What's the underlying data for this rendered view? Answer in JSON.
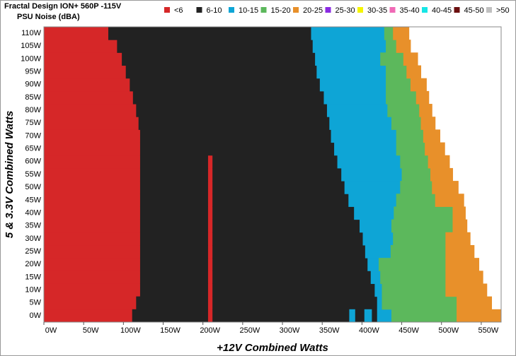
{
  "chart_data": {
    "type": "region-map",
    "title": "Fractal Design ION+ 560P -115V",
    "subtitle": "PSU Noise (dBA)",
    "x_label": "+12V Combined Watts",
    "y_label": "5 & 3.3V Combined Watts",
    "xlim": [
      0,
      575
    ],
    "xticks": [
      {
        "value": 0,
        "label": "0W"
      },
      {
        "value": 50,
        "label": "50W"
      },
      {
        "value": 100,
        "label": "100W"
      },
      {
        "value": 150,
        "label": "150W"
      },
      {
        "value": 200,
        "label": "200W"
      },
      {
        "value": 250,
        "label": "250W"
      },
      {
        "value": 300,
        "label": "300W"
      },
      {
        "value": 350,
        "label": "350W"
      },
      {
        "value": 400,
        "label": "400W"
      },
      {
        "value": 450,
        "label": "450W"
      },
      {
        "value": 500,
        "label": "500W"
      },
      {
        "value": 550,
        "label": "550W"
      }
    ],
    "categories": [
      "0W",
      "5W",
      "10W",
      "15W",
      "20W",
      "25W",
      "30W",
      "35W",
      "40W",
      "45W",
      "50W",
      "55W",
      "60W",
      "65W",
      "70W",
      "75W",
      "80W",
      "85W",
      "90W",
      "95W",
      "100W",
      "105W",
      "110W"
    ],
    "series": [
      {
        "name": "<6",
        "color": "#d62728",
        "values": [
          [
            [
              0,
              111
            ],
            [
              206,
              212
            ]
          ],
          [
            [
              0,
              116
            ],
            [
              206,
              212
            ]
          ],
          [
            [
              0,
              121
            ],
            [
              206,
              212
            ]
          ],
          [
            [
              0,
              121
            ],
            [
              206,
              212
            ]
          ],
          [
            [
              0,
              121
            ],
            [
              206,
              212
            ]
          ],
          [
            [
              0,
              121
            ],
            [
              206,
              212
            ]
          ],
          [
            [
              0,
              121
            ],
            [
              206,
              212
            ]
          ],
          [
            [
              0,
              121
            ],
            [
              206,
              212
            ]
          ],
          [
            [
              0,
              121
            ],
            [
              206,
              212
            ]
          ],
          [
            [
              0,
              121
            ],
            [
              206,
              212
            ]
          ],
          [
            [
              0,
              121
            ],
            [
              206,
              212
            ]
          ],
          [
            [
              0,
              121
            ],
            [
              206,
              212
            ]
          ],
          [
            [
              0,
              121
            ],
            [
              206,
              212
            ]
          ],
          [
            [
              0,
              121
            ]
          ],
          [
            [
              0,
              121
            ]
          ],
          [
            [
              0,
              119
            ]
          ],
          [
            [
              0,
              116
            ]
          ],
          [
            [
              0,
              112
            ]
          ],
          [
            [
              0,
              108
            ]
          ],
          [
            [
              0,
              103
            ]
          ],
          [
            [
              0,
              98
            ]
          ],
          [
            [
              0,
              92
            ]
          ],
          [
            [
              0,
              81
            ]
          ]
        ]
      },
      {
        "name": "6-10",
        "color": "#222222",
        "values": [
          [
            [
              111,
              206
            ],
            [
              212,
              384
            ],
            [
              391,
              403
            ],
            [
              412,
              419
            ]
          ],
          [
            [
              116,
              206
            ],
            [
              212,
              419
            ]
          ],
          [
            [
              121,
              206
            ],
            [
              212,
              416
            ]
          ],
          [
            [
              121,
              206
            ],
            [
              212,
              411
            ]
          ],
          [
            [
              121,
              206
            ],
            [
              212,
              407
            ]
          ],
          [
            [
              121,
              206
            ],
            [
              212,
              404
            ]
          ],
          [
            [
              121,
              206
            ],
            [
              212,
              401
            ]
          ],
          [
            [
              121,
              206
            ],
            [
              212,
              397
            ]
          ],
          [
            [
              121,
              206
            ],
            [
              212,
              390
            ]
          ],
          [
            [
              121,
              206
            ],
            [
              212,
              383
            ]
          ],
          [
            [
              121,
              206
            ],
            [
              212,
              378
            ]
          ],
          [
            [
              121,
              206
            ],
            [
              212,
              374
            ]
          ],
          [
            [
              121,
              206
            ],
            [
              212,
              369
            ]
          ],
          [
            [
              121,
              365
            ]
          ],
          [
            [
              121,
              361
            ]
          ],
          [
            [
              119,
              359
            ]
          ],
          [
            [
              116,
              356
            ]
          ],
          [
            [
              112,
              352
            ]
          ],
          [
            [
              108,
              347
            ]
          ],
          [
            [
              103,
              343
            ]
          ],
          [
            [
              98,
              341
            ]
          ],
          [
            [
              92,
              338
            ]
          ],
          [
            [
              81,
              336
            ]
          ]
        ]
      },
      {
        "name": "10-15",
        "color": "#0ea5d6",
        "values": [
          [
            [
              384,
              391
            ],
            [
              403,
              412
            ],
            [
              419,
              437
            ]
          ],
          [
            [
              419,
              425
            ]
          ],
          [
            [
              416,
              425
            ]
          ],
          [
            [
              411,
              423
            ]
          ],
          [
            [
              407,
              421
            ]
          ],
          [
            [
              404,
              436
            ]
          ],
          [
            [
              401,
              439
            ]
          ],
          [
            [
              397,
              437
            ]
          ],
          [
            [
              390,
              440
            ]
          ],
          [
            [
              383,
              443
            ]
          ],
          [
            [
              378,
              448
            ]
          ],
          [
            [
              374,
              450
            ]
          ],
          [
            [
              369,
              448
            ]
          ],
          [
            [
              365,
              443
            ]
          ],
          [
            [
              361,
              443
            ]
          ],
          [
            [
              359,
              437
            ]
          ],
          [
            [
              356,
              432
            ]
          ],
          [
            [
              352,
              430
            ]
          ],
          [
            [
              347,
              430
            ]
          ],
          [
            [
              343,
              430
            ]
          ],
          [
            [
              341,
              423
            ]
          ],
          [
            [
              338,
              430
            ]
          ],
          [
            [
              336,
              428
            ]
          ]
        ]
      },
      {
        "name": "15-20",
        "color": "#5cb85c",
        "values": [
          [
            [
              437,
              519
            ]
          ],
          [
            [
              425,
              519
            ]
          ],
          [
            [
              425,
              505
            ]
          ],
          [
            [
              423,
              505
            ]
          ],
          [
            [
              421,
              505
            ]
          ],
          [
            [
              436,
              505
            ]
          ],
          [
            [
              439,
              505
            ]
          ],
          [
            [
              437,
              514
            ]
          ],
          [
            [
              440,
              514
            ]
          ],
          [
            [
              443,
              492
            ]
          ],
          [
            [
              448,
              488
            ]
          ],
          [
            [
              450,
              486
            ]
          ],
          [
            [
              448,
              483
            ]
          ],
          [
            [
              443,
              479
            ]
          ],
          [
            [
              443,
              477
            ]
          ],
          [
            [
              437,
              474
            ]
          ],
          [
            [
              432,
              472
            ]
          ],
          [
            [
              430,
              468
            ]
          ],
          [
            [
              430,
              461
            ]
          ],
          [
            [
              430,
              456
            ]
          ],
          [
            [
              423,
              452
            ]
          ],
          [
            [
              430,
              443
            ]
          ],
          [
            [
              428,
              439
            ]
          ]
        ]
      },
      {
        "name": "20-25",
        "color": "#e8902a",
        "values": [
          [
            [
              519,
              575
            ]
          ],
          [
            [
              519,
              563
            ]
          ],
          [
            [
              505,
              557
            ]
          ],
          [
            [
              505,
              552
            ]
          ],
          [
            [
              505,
              547
            ]
          ],
          [
            [
              505,
              541
            ]
          ],
          [
            [
              505,
              536
            ]
          ],
          [
            [
              514,
              532
            ]
          ],
          [
            [
              514,
              530
            ]
          ],
          [
            [
              492,
              528
            ]
          ],
          [
            [
              488,
              521
            ]
          ],
          [
            [
              486,
              514
            ]
          ],
          [
            [
              483,
              510
            ]
          ],
          [
            [
              479,
              504
            ]
          ],
          [
            [
              477,
              498
            ]
          ],
          [
            [
              474,
              492
            ]
          ],
          [
            [
              472,
              488
            ]
          ],
          [
            [
              468,
              484
            ]
          ],
          [
            [
              461,
              481
            ]
          ],
          [
            [
              456,
              474
            ]
          ],
          [
            [
              452,
              470
            ]
          ],
          [
            [
              443,
              461
            ]
          ],
          [
            [
              439,
              459
            ]
          ]
        ]
      },
      {
        "name": "25-30",
        "color": "#8a2be2",
        "values": [
          null,
          null,
          null,
          null,
          null,
          null,
          null,
          null,
          null,
          null,
          null,
          null,
          null,
          null,
          null,
          null,
          null,
          null,
          null,
          null,
          null,
          null,
          null
        ]
      },
      {
        "name": "30-35",
        "color": "#f5f500",
        "values": [
          null,
          null,
          null,
          null,
          null,
          null,
          null,
          null,
          null,
          null,
          null,
          null,
          null,
          null,
          null,
          null,
          null,
          null,
          null,
          null,
          null,
          null,
          null
        ]
      },
      {
        "name": "35-40",
        "color": "#f06ab6",
        "values": [
          null,
          null,
          null,
          null,
          null,
          null,
          null,
          null,
          null,
          null,
          null,
          null,
          null,
          null,
          null,
          null,
          null,
          null,
          null,
          null,
          null,
          null,
          null
        ]
      },
      {
        "name": "40-45",
        "color": "#17e6e6",
        "values": [
          null,
          null,
          null,
          null,
          null,
          null,
          null,
          null,
          null,
          null,
          null,
          null,
          null,
          null,
          null,
          null,
          null,
          null,
          null,
          null,
          null,
          null,
          null
        ]
      },
      {
        "name": "45-50",
        "color": "#6b0f0f",
        "values": [
          null,
          null,
          null,
          null,
          null,
          null,
          null,
          null,
          null,
          null,
          null,
          null,
          null,
          null,
          null,
          null,
          null,
          null,
          null,
          null,
          null,
          null,
          null
        ]
      },
      {
        "name": ">50",
        "color": "#c0c0c0",
        "values": [
          null,
          null,
          null,
          null,
          null,
          null,
          null,
          null,
          null,
          null,
          null,
          null,
          null,
          null,
          null,
          null,
          null,
          null,
          null,
          null,
          null,
          null,
          null
        ]
      }
    ]
  }
}
